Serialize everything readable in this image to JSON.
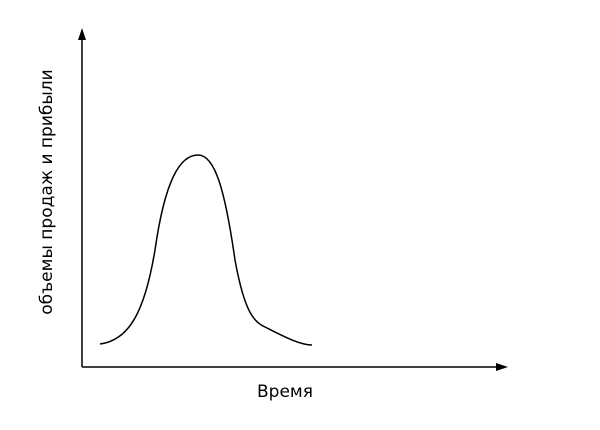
{
  "axes": {
    "x_label": "Время",
    "y_label": "объемы продаж и прибыли"
  }
}
